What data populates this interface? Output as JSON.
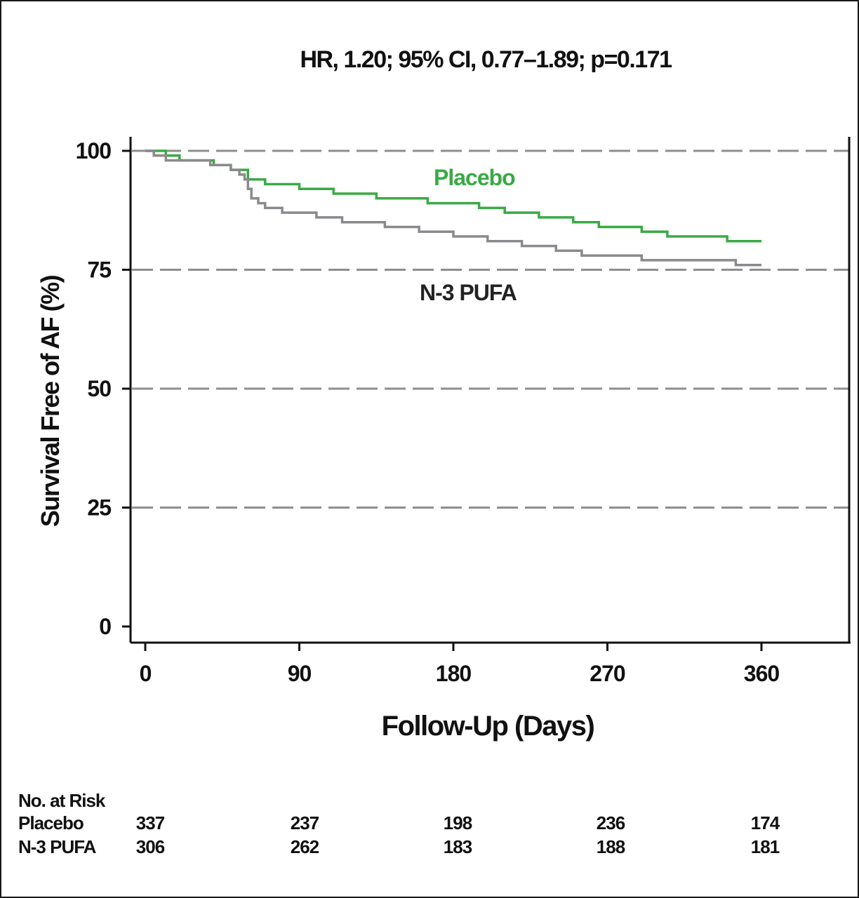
{
  "chart_data": {
    "type": "line",
    "title": "HR, 1.20; 95% CI, 0.77–1.89; p=0.171",
    "xlabel": "Follow-Up (Days)",
    "ylabel": "Survival Free of AF (%)",
    "xlim": [
      0,
      360
    ],
    "ylim": [
      0,
      100
    ],
    "xticks": [
      "0",
      "90",
      "180",
      "270",
      "360"
    ],
    "yticks": [
      "0",
      "25",
      "50",
      "75",
      "100"
    ],
    "grid": "dashed horizontal at 25, 50, 75, 100",
    "series": [
      {
        "name": "Placebo",
        "color": "#3aaa45",
        "points": [
          [
            0,
            100
          ],
          [
            8,
            100
          ],
          [
            12,
            99
          ],
          [
            20,
            98
          ],
          [
            38,
            98
          ],
          [
            40,
            97
          ],
          [
            48,
            97
          ],
          [
            50,
            96
          ],
          [
            57,
            96
          ],
          [
            60,
            94
          ],
          [
            65,
            94
          ],
          [
            70,
            93
          ],
          [
            85,
            93
          ],
          [
            90,
            92
          ],
          [
            105,
            92
          ],
          [
            110,
            91
          ],
          [
            130,
            91
          ],
          [
            135,
            90
          ],
          [
            160,
            90
          ],
          [
            165,
            89
          ],
          [
            190,
            89
          ],
          [
            195,
            88
          ],
          [
            205,
            88
          ],
          [
            210,
            87
          ],
          [
            225,
            87
          ],
          [
            230,
            86
          ],
          [
            245,
            86
          ],
          [
            250,
            85
          ],
          [
            260,
            85
          ],
          [
            265,
            84
          ],
          [
            285,
            84
          ],
          [
            290,
            83
          ],
          [
            300,
            83
          ],
          [
            305,
            82
          ],
          [
            335,
            82
          ],
          [
            340,
            81
          ],
          [
            360,
            81
          ]
        ]
      },
      {
        "name": "N-3 PUFA",
        "color": "#8a8a8e",
        "points": [
          [
            0,
            100
          ],
          [
            5,
            99
          ],
          [
            10,
            99
          ],
          [
            12,
            98
          ],
          [
            35,
            98
          ],
          [
            38,
            97
          ],
          [
            45,
            97
          ],
          [
            50,
            96
          ],
          [
            55,
            95
          ],
          [
            58,
            94
          ],
          [
            60,
            92
          ],
          [
            62,
            90
          ],
          [
            66,
            89
          ],
          [
            70,
            88
          ],
          [
            75,
            88
          ],
          [
            80,
            87
          ],
          [
            95,
            87
          ],
          [
            100,
            86
          ],
          [
            110,
            86
          ],
          [
            115,
            85
          ],
          [
            135,
            85
          ],
          [
            140,
            84
          ],
          [
            155,
            84
          ],
          [
            160,
            83
          ],
          [
            175,
            83
          ],
          [
            180,
            82
          ],
          [
            195,
            82
          ],
          [
            200,
            81
          ],
          [
            215,
            81
          ],
          [
            220,
            80
          ],
          [
            235,
            80
          ],
          [
            240,
            79
          ],
          [
            250,
            79
          ],
          [
            255,
            78
          ],
          [
            285,
            78
          ],
          [
            290,
            77
          ],
          [
            340,
            77
          ],
          [
            345,
            76
          ],
          [
            360,
            76
          ]
        ]
      }
    ],
    "risk_table": {
      "header": "No. at Risk",
      "rows": [
        {
          "label": "Placebo",
          "values": [
            "337",
            "237",
            "198",
            "236",
            "174"
          ]
        },
        {
          "label": "N-3 PUFA",
          "values": [
            "306",
            "262",
            "183",
            "188",
            "181"
          ]
        }
      ]
    }
  }
}
